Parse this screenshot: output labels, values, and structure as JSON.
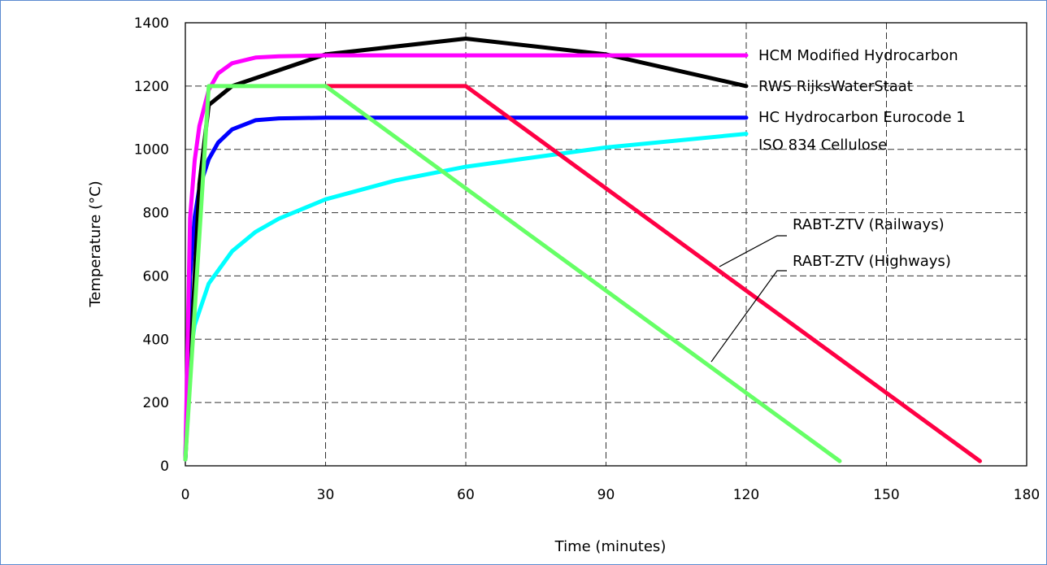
{
  "chart_data": {
    "type": "line",
    "title": "",
    "xlabel": "Time (minutes)",
    "ylabel": "Temperature (°C)",
    "xlim": [
      0,
      180
    ],
    "ylim": [
      0,
      1400
    ],
    "xticks": [
      0,
      30,
      60,
      90,
      120,
      150,
      180
    ],
    "yticks": [
      0,
      200,
      400,
      600,
      800,
      1000,
      1200,
      1400
    ],
    "grid": true,
    "series": [
      {
        "name": "HCM Modified Hydrocarbon",
        "color": "#ff00ff",
        "x": [
          0,
          1,
          2,
          3,
          5,
          7,
          10,
          15,
          20,
          30,
          45,
          60,
          90,
          120
        ],
        "y": [
          20,
          783,
          965,
          1074,
          1188,
          1240,
          1272,
          1290,
          1294,
          1297,
          1297,
          1297,
          1297,
          1297
        ]
      },
      {
        "name": "RWS RijksWaterStaat",
        "color": "#000000",
        "x": [
          0,
          3,
          5,
          10,
          30,
          60,
          90,
          120
        ],
        "y": [
          20,
          890,
          1140,
          1200,
          1300,
          1350,
          1300,
          1200
        ]
      },
      {
        "name": "HC Hydrocarbon Eurocode 1",
        "color": "#0000ff",
        "x": [
          0,
          1,
          2,
          3,
          5,
          7,
          10,
          15,
          20,
          30,
          45,
          60,
          90,
          120
        ],
        "y": [
          20,
          597,
          786,
          879,
          969,
          1021,
          1063,
          1092,
          1098,
          1100,
          1100,
          1100,
          1100,
          1100
        ]
      },
      {
        "name": "ISO 834 Cellulose",
        "color": "#00ffff",
        "x": [
          0,
          1,
          2,
          5,
          10,
          15,
          20,
          30,
          45,
          60,
          90,
          120
        ],
        "y": [
          20,
          349,
          445,
          576,
          678,
          739,
          781,
          842,
          902,
          945,
          1006,
          1049
        ]
      },
      {
        "name": "RABT-ZTV (Highways)",
        "color": "#66ff66",
        "x": [
          0,
          5,
          30,
          140
        ],
        "y": [
          20,
          1200,
          1200,
          15
        ]
      },
      {
        "name": "RABT-ZTV (Railways)",
        "color": "#ff0044",
        "x": [
          30,
          60,
          170
        ],
        "y": [
          1200,
          1200,
          15
        ]
      }
    ],
    "annotations": [
      {
        "text": "HCM Modified Hydrocarbon",
        "series": "HCM Modified Hydrocarbon"
      },
      {
        "text": "RWS RijksWaterStaat",
        "series": "RWS RijksWaterStaat"
      },
      {
        "text": "HC Hydrocarbon Eurocode 1",
        "series": "HC Hydrocarbon Eurocode 1"
      },
      {
        "text": "ISO 834 Cellulose",
        "series": "ISO 834 Cellulose"
      },
      {
        "text": "RABT-ZTV (Railways)",
        "series": "RABT-ZTV (Railways)"
      },
      {
        "text": "RABT-ZTV (Highways)",
        "series": "RABT-ZTV (Highways)"
      }
    ]
  }
}
